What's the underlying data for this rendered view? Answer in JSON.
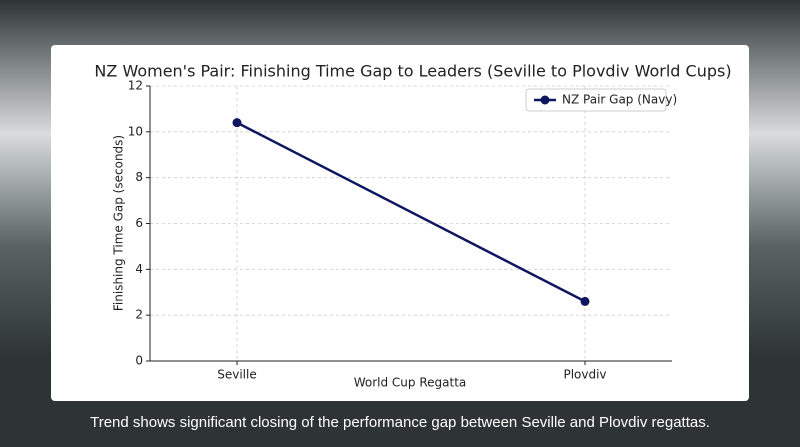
{
  "chart_data": {
    "type": "line",
    "title": "NZ Women's Pair: Finishing Time Gap to Leaders (Seville to Plovdiv World Cups)",
    "x_label": "World Cup Regatta",
    "y_label": "Finishing Time Gap (seconds)",
    "categories": [
      "Seville",
      "Plovdiv"
    ],
    "series": [
      {
        "name": "NZ Pair Gap (Navy)",
        "color": "#0f1660",
        "values": [
          10.4,
          2.6
        ]
      }
    ],
    "ylim": [
      0,
      12
    ],
    "yticks": [
      0,
      2,
      4,
      6,
      8,
      10,
      12
    ],
    "grid": true,
    "legend": "upper right"
  },
  "caption": "Trend shows significant closing of the performance gap between Seville and Plovdiv regattas."
}
